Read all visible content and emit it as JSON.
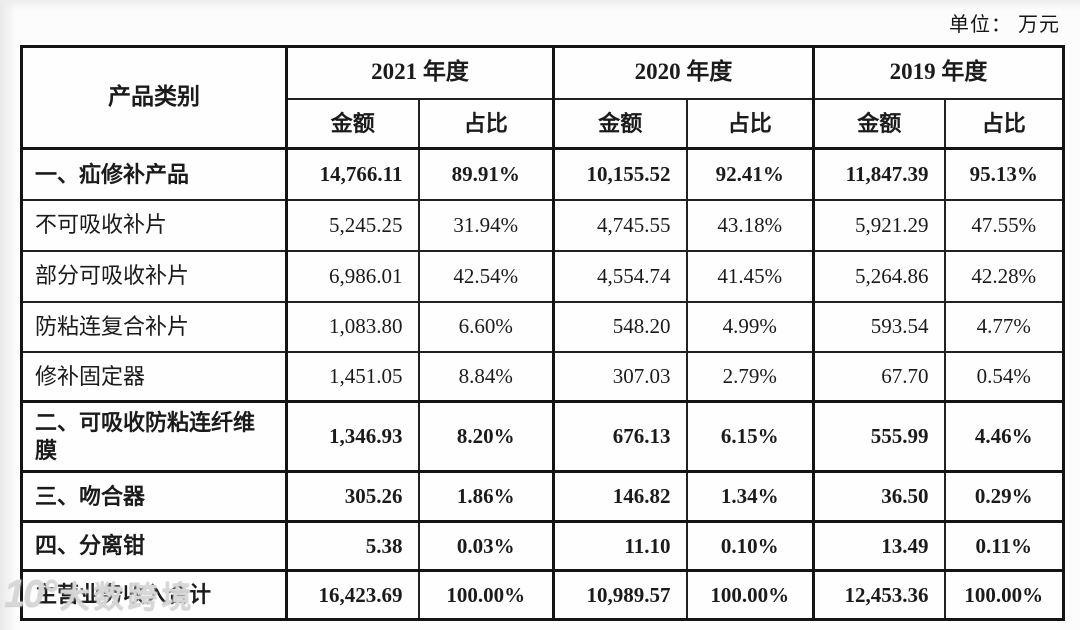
{
  "unit_label": "单位： 万元",
  "table": {
    "product_header": "产品类别",
    "year_headers": [
      "2021 年度",
      "2020 年度",
      "2019 年度"
    ],
    "sub_headers": {
      "amount": "金额",
      "ratio": "占比"
    },
    "rows": [
      {
        "name": "一、疝修补产品",
        "bold": true,
        "values": [
          "14,766.11",
          "89.91%",
          "10,155.52",
          "92.41%",
          "11,847.39",
          "95.13%"
        ]
      },
      {
        "name": "不可吸收补片",
        "bold": false,
        "values": [
          "5,245.25",
          "31.94%",
          "4,745.55",
          "43.18%",
          "5,921.29",
          "47.55%"
        ]
      },
      {
        "name": "部分可吸收补片",
        "bold": false,
        "values": [
          "6,986.01",
          "42.54%",
          "4,554.74",
          "41.45%",
          "5,264.86",
          "42.28%"
        ]
      },
      {
        "name": "防粘连复合补片",
        "bold": false,
        "values": [
          "1,083.80",
          "6.60%",
          "548.20",
          "4.99%",
          "593.54",
          "4.77%"
        ]
      },
      {
        "name": "修补固定器",
        "bold": false,
        "values": [
          "1,451.05",
          "8.84%",
          "307.03",
          "2.79%",
          "67.70",
          "0.54%"
        ]
      },
      {
        "name": "二、可吸收防粘连纤维膜",
        "bold": true,
        "values": [
          "1,346.93",
          "8.20%",
          "676.13",
          "6.15%",
          "555.99",
          "4.46%"
        ]
      },
      {
        "name": "三、吻合器",
        "bold": true,
        "values": [
          "305.26",
          "1.86%",
          "146.82",
          "1.34%",
          "36.50",
          "0.29%"
        ]
      },
      {
        "name": "四、分离钳",
        "bold": true,
        "values": [
          "5.38",
          "0.03%",
          "11.10",
          "0.10%",
          "13.49",
          "0.11%"
        ]
      },
      {
        "name": "主营业务收入合计",
        "bold": true,
        "values": [
          "16,423.69",
          "100.00%",
          "10,989.57",
          "100.00%",
          "12,453.36",
          "100.00%"
        ]
      }
    ]
  },
  "watermark": {
    "logo": "10°",
    "brand": "大数跨境"
  }
}
